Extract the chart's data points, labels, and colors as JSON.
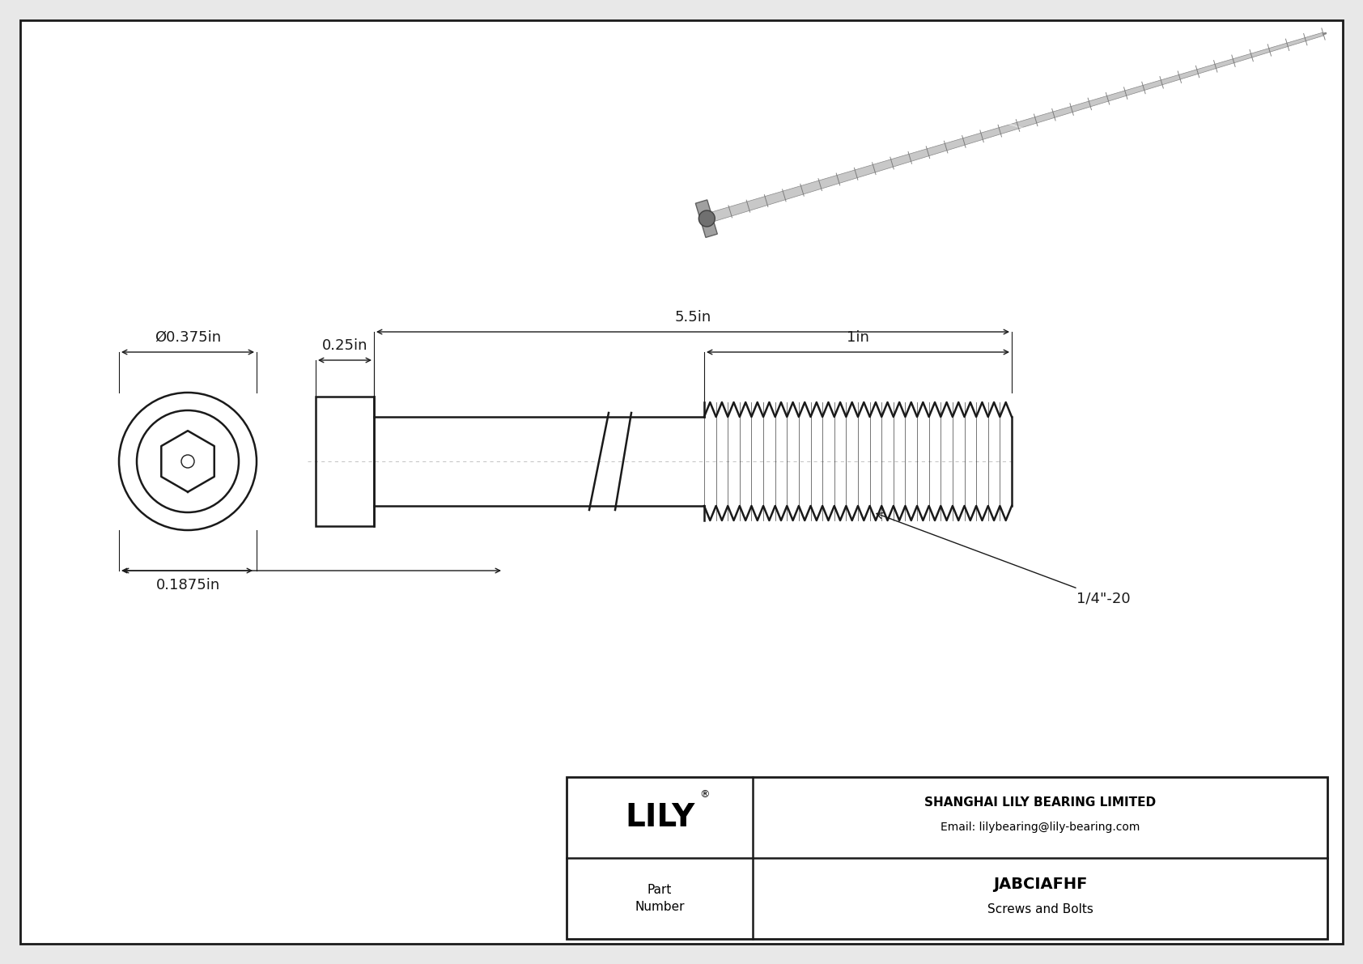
{
  "bg_color": "#e8e8e8",
  "drawing_bg": "#f5f5f5",
  "line_color": "#1a1a1a",
  "fig_w": 16.84,
  "fig_h": 11.91,
  "title": "JABCIAFHF",
  "subtitle": "Screws and Bolts",
  "company": "SHANGHAI LILY BEARING LIMITED",
  "email": "Email: lilybearing@lily-bearing.com",
  "part_label": "Part\nNumber",
  "dim_diameter": "Ø0.375in",
  "dim_head_width": "0.25in",
  "dim_length": "5.5in",
  "dim_thread": "1in",
  "dim_head_height": "0.1875in",
  "thread_label": "1/4\"-20",
  "logo_reg": "®"
}
